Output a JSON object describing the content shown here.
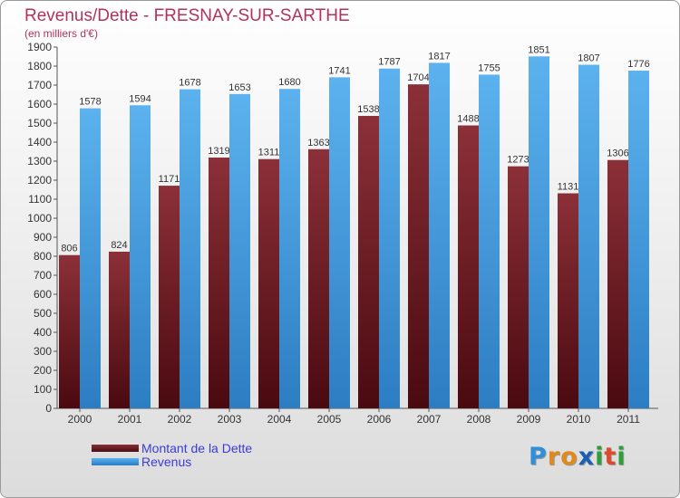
{
  "title": "Revenus/Dette - FRESNAY-SUR-SARTHE",
  "subtitle": "(en milliers d'€)",
  "logo": [
    "P",
    "r",
    "o",
    "x",
    "i",
    "t",
    "i"
  ],
  "logo_colors": [
    "#2f8fd8",
    "#e08a1e",
    "#e08a1e",
    "#1a5fb4",
    "#2e9e3a",
    "#e04a2a",
    "#2e9e3a"
  ],
  "chart_data": {
    "type": "bar",
    "categories": [
      "2000",
      "2001",
      "2002",
      "2003",
      "2004",
      "2005",
      "2006",
      "2007",
      "2008",
      "2009",
      "2010",
      "2011"
    ],
    "series": [
      {
        "name": "Montant de la Dette",
        "values": [
          806,
          824,
          1171,
          1319,
          1311,
          1363,
          1538,
          1704,
          1488,
          1273,
          1131,
          1306
        ],
        "color": "#7a2a30"
      },
      {
        "name": "Revenus",
        "values": [
          1578,
          1594,
          1678,
          1653,
          1680,
          1741,
          1787,
          1817,
          1755,
          1851,
          1807,
          1776
        ],
        "color": "#4aa3e6"
      }
    ],
    "ylim": [
      0,
      1900
    ],
    "yticks": [
      "0",
      "100",
      "200",
      "300",
      "400",
      "500",
      "600",
      "700",
      "800",
      "900",
      "1000",
      "1100",
      "1200",
      "1300",
      "1400",
      "1500",
      "1600",
      "1700",
      "1800",
      "1900"
    ],
    "grid": false,
    "legend_position": "bottom-left"
  }
}
